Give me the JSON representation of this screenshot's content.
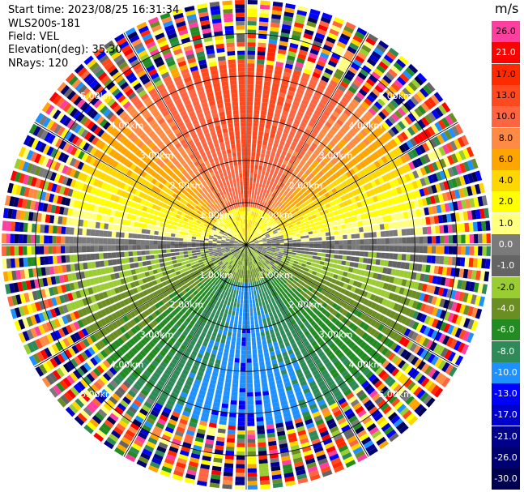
{
  "info": {
    "start_time": "Start time: 2023/08/25 16:31:34",
    "instrument": "WLS200s-181",
    "field": "Field: VEL",
    "elevation": "Elevation(deg): 35.30",
    "nrays": "NRays: 120"
  },
  "colorbar": {
    "unit": "m/s",
    "levels": [
      {
        "label": "26.0",
        "color": "#ff3f9f"
      },
      {
        "label": "21.0",
        "color": "#ff0000"
      },
      {
        "label": "17.0",
        "color": "#ff2a00"
      },
      {
        "label": "13.0",
        "color": "#ff4a1f"
      },
      {
        "label": "10.0",
        "color": "#ff6540"
      },
      {
        "label": "8.0",
        "color": "#ff8a44"
      },
      {
        "label": "6.0",
        "color": "#ffa500"
      },
      {
        "label": "4.0",
        "color": "#ffd700"
      },
      {
        "label": "2.0",
        "color": "#ffff00"
      },
      {
        "label": "1.0",
        "color": "#ffff80"
      },
      {
        "label": "0.0",
        "color": "#7a7a7a"
      },
      {
        "label": "-1.0",
        "color": "#646464"
      },
      {
        "label": "-2.0",
        "color": "#9acd32"
      },
      {
        "label": "-4.0",
        "color": "#6b8e23"
      },
      {
        "label": "-6.0",
        "color": "#228b22"
      },
      {
        "label": "-8.0",
        "color": "#2e8b57"
      },
      {
        "label": "-10.0",
        "color": "#1e90ff"
      },
      {
        "label": "-13.0",
        "color": "#0000ff"
      },
      {
        "label": "-17.0",
        "color": "#0000cd"
      },
      {
        "label": "-21.0",
        "color": "#00008b"
      },
      {
        "label": "-26.0",
        "color": "#000070"
      },
      {
        "label": "-30.0",
        "color": "#000050"
      }
    ]
  },
  "chart_data": {
    "type": "heatmap",
    "subtype": "polar-ppi",
    "field": "VEL",
    "elevation_deg": 35.3,
    "nrays": 120,
    "range_rings_km": [
      1.0,
      2.0,
      3.0,
      4.0,
      5.0
    ],
    "ring_labels": [
      "1.00km",
      "2.00km",
      "3.00km",
      "4.00km",
      "5.00km"
    ],
    "max_range_km": 5.8,
    "spoke_angles_deg": [
      0,
      30,
      60,
      90,
      120,
      150,
      180,
      210,
      240,
      270,
      300,
      330
    ],
    "azimuth_velocity_profile": [
      {
        "azimuth_deg": 0,
        "velocity_ms": 15
      },
      {
        "azimuth_deg": 45,
        "velocity_ms": 8
      },
      {
        "azimuth_deg": 90,
        "velocity_ms": 0
      },
      {
        "azimuth_deg": 135,
        "velocity_ms": -5
      },
      {
        "azimuth_deg": 180,
        "velocity_ms": -10
      },
      {
        "azimuth_deg": 225,
        "velocity_ms": -5
      },
      {
        "azimuth_deg": 270,
        "velocity_ms": 0
      },
      {
        "azimuth_deg": 315,
        "velocity_ms": 8
      }
    ],
    "noise_beyond_km": 4.3
  }
}
